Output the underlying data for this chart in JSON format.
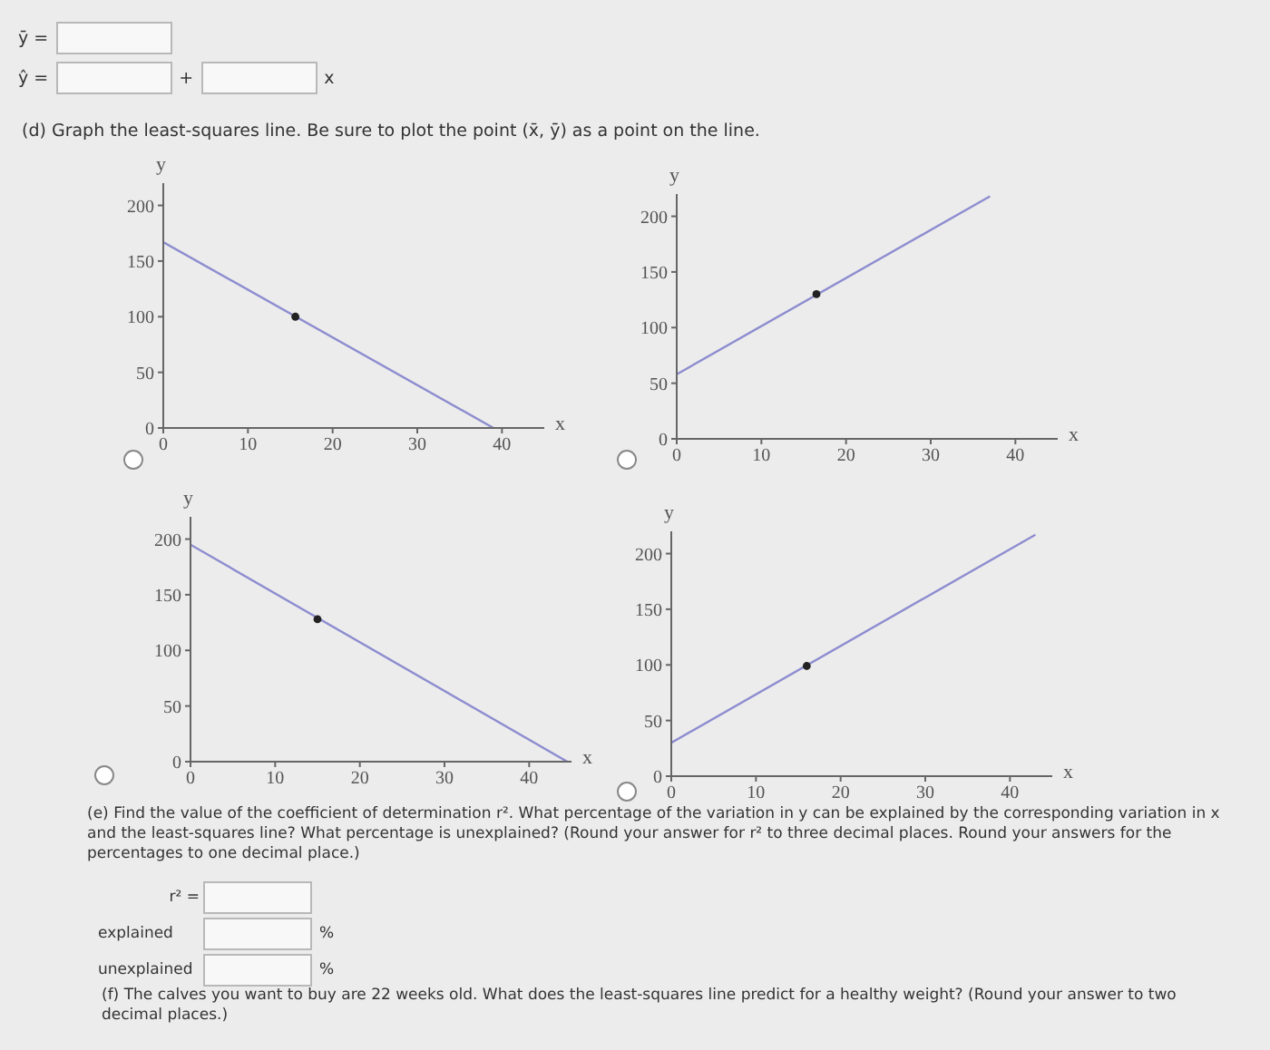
{
  "chart_data": [
    {
      "type": "line",
      "title": "(d) Graph the least-squares line. Be sure to plot the point (x̄, ȳ) as a point on the line.",
      "annotations": [
        "ȳ =",
        "ŷ =",
        "+",
        "x"
      ],
      "xlabel": "x",
      "ylabel": "y",
      "xlim": [
        0,
        45
      ],
      "xticks": [
        0,
        10,
        20,
        30,
        40
      ],
      "ylim": [
        0,
        220
      ],
      "yticks": [
        0,
        50,
        100,
        150,
        200
      ],
      "series": [
        {
          "type": "line",
          "color": "#8c8cd0",
          "x": [
            0,
            39
          ],
          "values": [
            167,
            0
          ]
        },
        {
          "type": "scatter",
          "color": "#222222",
          "x": [
            15.6
          ],
          "values": [
            100
          ],
          "marker": "circle"
        }
      ]
    },
    {
      "type": "line",
      "xlabel": "x",
      "ylabel": "y",
      "xlim": [
        0,
        45
      ],
      "xticks": [
        0,
        10,
        20,
        30,
        40
      ],
      "ylim": [
        0,
        220
      ],
      "yticks": [
        0,
        50,
        100,
        150,
        200
      ],
      "series": [
        {
          "type": "line",
          "color": "#8c8cd0",
          "x": [
            0,
            37
          ],
          "values": [
            58,
            218
          ]
        },
        {
          "type": "scatter",
          "color": "#222222",
          "x": [
            16.5
          ],
          "values": [
            130
          ],
          "marker": "circle"
        }
      ]
    },
    {
      "type": "line",
      "xlabel": "x",
      "ylabel": "y",
      "xlim": [
        0,
        45
      ],
      "xticks": [
        0,
        10,
        20,
        30,
        40
      ],
      "ylim": [
        0,
        220
      ],
      "yticks": [
        0,
        50,
        100,
        150,
        200
      ],
      "series": [
        {
          "type": "line",
          "color": "#8c8cd0",
          "x": [
            0,
            44.5
          ],
          "values": [
            195,
            0
          ]
        },
        {
          "type": "scatter",
          "color": "#222222",
          "x": [
            15
          ],
          "values": [
            128
          ],
          "marker": "circle"
        }
      ]
    },
    {
      "type": "line",
      "xlabel": "x",
      "ylabel": "y",
      "xlim": [
        0,
        45
      ],
      "xticks": [
        0,
        10,
        20,
        30,
        40
      ],
      "ylim": [
        0,
        220
      ],
      "yticks": [
        0,
        50,
        100,
        150,
        200
      ],
      "annotations": [
        "(e) Find the value of the coefficient of determination r². What percentage of the variation in y can be explained by the corresponding variation in x and the least-squares line? What percentage is unexplained? (Round your answer for r² to three decimal places. Round your answers for the percentages to one decimal place.)",
        "r² =",
        "explained",
        "%",
        "unexplained",
        "%",
        "(f) The calves you want to buy are 22 weeks old. What does the least-squares line predict for a healthy weight? (Round your answer to two decimal places.)"
      ],
      "series": [
        {
          "type": "line",
          "color": "#8c8cd0",
          "x": [
            0,
            43
          ],
          "values": [
            30,
            217
          ]
        },
        {
          "type": "scatter",
          "color": "#222222",
          "x": [
            16
          ],
          "values": [
            99
          ],
          "marker": "circle"
        }
      ]
    }
  ]
}
